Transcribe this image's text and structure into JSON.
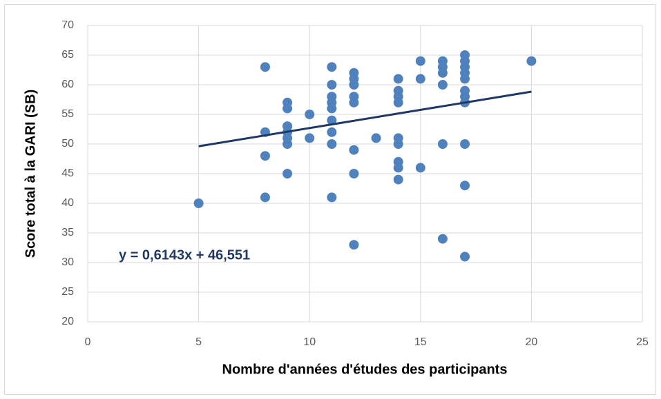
{
  "chart_data": {
    "type": "scatter",
    "x_label": "Nombre d'années d'études des participants",
    "y_label": "Score total à la GARI (SB)",
    "x": [
      5,
      8,
      8,
      8,
      8,
      9,
      9,
      9,
      9,
      9,
      9,
      9,
      9,
      10,
      10,
      11,
      11,
      11,
      11,
      11,
      11,
      11,
      11,
      11,
      12,
      12,
      12,
      12,
      12,
      12,
      12,
      12,
      13,
      14,
      14,
      14,
      14,
      14,
      14,
      14,
      14,
      14,
      15,
      15,
      15,
      16,
      16,
      16,
      16,
      16,
      16,
      17,
      17,
      17,
      17,
      17,
      17,
      17,
      17,
      17,
      17,
      17,
      20
    ],
    "values": [
      40,
      63,
      52,
      48,
      41,
      57,
      56,
      53,
      53,
      52,
      51,
      50,
      45,
      55,
      51,
      63,
      60,
      58,
      57,
      56,
      54,
      52,
      50,
      41,
      62,
      61,
      60,
      58,
      57,
      49,
      45,
      33,
      51,
      61,
      59,
      58,
      57,
      51,
      50,
      47,
      46,
      44,
      64,
      61,
      46,
      64,
      63,
      62,
      60,
      50,
      34,
      65,
      64,
      63,
      62,
      61,
      59,
      58,
      57,
      50,
      43,
      31,
      64
    ],
    "color": "#4f81bd",
    "trendline": {
      "label": "y = 0,6143x + 46,551",
      "slope": 0.6143,
      "intercept": 46.551,
      "color": "#1f3864"
    },
    "xlim": [
      0,
      25
    ],
    "xticks": [
      0,
      5,
      10,
      15,
      20,
      25
    ],
    "ylim": [
      20,
      70
    ],
    "yticks": [
      20,
      25,
      30,
      35,
      40,
      45,
      50,
      55,
      60,
      65,
      70
    ],
    "grid": true
  }
}
